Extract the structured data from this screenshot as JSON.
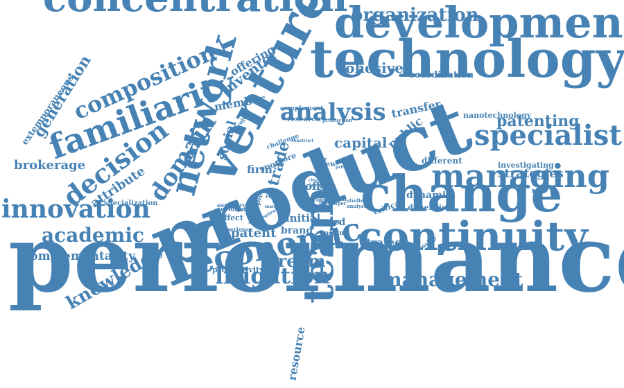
{
  "colors": {
    "word": "#4682b4",
    "background": "#ffffff"
  },
  "words": [
    {
      "key": "performance",
      "text": "performance"
    },
    {
      "key": "product",
      "text": "product"
    },
    {
      "key": "technology",
      "text": "technology"
    },
    {
      "key": "development",
      "text": "development"
    },
    {
      "key": "concentration",
      "text": "concentration"
    },
    {
      "key": "venture",
      "text": "venture"
    },
    {
      "key": "change",
      "text": "change"
    },
    {
      "key": "continuity",
      "text": "continuity"
    },
    {
      "key": "managing",
      "text": "managing"
    },
    {
      "key": "familiarity",
      "text": "familiarity"
    },
    {
      "key": "network",
      "text": "network"
    },
    {
      "key": "economic",
      "text": "economic"
    },
    {
      "key": "team",
      "text": "team"
    },
    {
      "key": "innovation",
      "text": "innovation"
    },
    {
      "key": "specialist",
      "text": "specialist"
    },
    {
      "key": "decision",
      "text": "decision"
    },
    {
      "key": "composition",
      "text": "composition"
    },
    {
      "key": "analysis",
      "text": "analysis"
    },
    {
      "key": "organization",
      "text": "organization"
    },
    {
      "key": "domain",
      "text": "domain"
    },
    {
      "key": "academic",
      "text": "academic"
    },
    {
      "key": "litigation",
      "text": "litigation"
    },
    {
      "key": "management",
      "text": "management"
    },
    {
      "key": "stream",
      "text": "stream"
    },
    {
      "key": "knowledge",
      "text": "knowledge"
    },
    {
      "key": "patenting",
      "text": "patenting"
    },
    {
      "key": "generation",
      "text": "generation"
    },
    {
      "key": "cohesive",
      "text": "cohesive"
    },
    {
      "key": "brokerage",
      "text": "brokerage"
    },
    {
      "key": "complementarity",
      "text": "complementarity"
    },
    {
      "key": "inventor",
      "text": "inventor"
    },
    {
      "key": "capital",
      "text": "capital"
    },
    {
      "key": "strategies",
      "text": "strategies"
    },
    {
      "key": "attribute",
      "text": "attribute"
    },
    {
      "key": "social",
      "text": "social"
    },
    {
      "key": "offering",
      "text": "offering"
    },
    {
      "key": "member",
      "text": "member"
    },
    {
      "key": "public",
      "text": "public"
    },
    {
      "key": "transfer",
      "text": "transfer"
    },
    {
      "key": "trade",
      "text": "trade"
    },
    {
      "key": "patent",
      "text": "patent"
    },
    {
      "key": "resource",
      "text": "resource"
    },
    {
      "key": "dynamic",
      "text": "dynamic"
    },
    {
      "key": "strategy",
      "text": "strategy"
    },
    {
      "key": "extemporaneous",
      "text": "extemporaneous"
    },
    {
      "key": "firm",
      "text": "firm"
    },
    {
      "key": "initial",
      "text": "initial"
    },
    {
      "key": "based",
      "text": "based"
    },
    {
      "key": "brand",
      "text": "brand"
    },
    {
      "key": "different",
      "text": "different"
    },
    {
      "key": "coordination",
      "text": "coordination"
    },
    {
      "key": "nanotechnology",
      "text": "nanotechnology"
    },
    {
      "key": "investigating",
      "text": "investigating"
    },
    {
      "key": "dimension",
      "text": "dimension"
    },
    {
      "key": "productivity",
      "text": "productivity"
    },
    {
      "key": "specialization",
      "text": "specialization"
    },
    {
      "key": "research",
      "text": "research"
    },
    {
      "key": "complement",
      "text": "complement"
    },
    {
      "key": "sport",
      "text": "sport"
    },
    {
      "key": "affect",
      "text": "affect"
    },
    {
      "key": "evidence",
      "text": "evidence"
    },
    {
      "key": "summary",
      "text": "summary"
    },
    {
      "key": "experience",
      "text": "experience"
    },
    {
      "key": "view",
      "text": "view"
    },
    {
      "key": "off",
      "text": "off"
    },
    {
      "key": "critical",
      "text": "critical"
    },
    {
      "key": "multiple",
      "text": "multiple"
    },
    {
      "key": "asset",
      "text": "asset"
    },
    {
      "key": "backing",
      "text": "backing"
    },
    {
      "key": "market",
      "text": "market"
    },
    {
      "key": "relationship",
      "text": "relationship"
    },
    {
      "key": "more",
      "text": "more"
    },
    {
      "key": "challenge",
      "text": "challenge"
    },
    {
      "key": "project",
      "text": "project"
    },
    {
      "key": "result",
      "text": "result"
    },
    {
      "key": "production",
      "text": "production"
    },
    {
      "key": "factor",
      "text": "factor"
    },
    {
      "key": "bridge",
      "text": "bridge"
    },
    {
      "key": "level",
      "text": "level"
    },
    {
      "key": "analyze",
      "text": "analyze"
    },
    {
      "key": "studies",
      "text": "studies"
    },
    {
      "key": "control",
      "text": "control"
    },
    {
      "key": "paper",
      "text": "paper"
    },
    {
      "key": "general",
      "text": "general"
    },
    {
      "key": "choice",
      "text": "choice"
    },
    {
      "key": "terms",
      "text": "terms"
    },
    {
      "key": "many",
      "text": "many"
    },
    {
      "key": "construct",
      "text": "construct"
    },
    {
      "key": "prior",
      "text": "prior"
    },
    {
      "key": "gain",
      "text": "gain"
    }
  ]
}
